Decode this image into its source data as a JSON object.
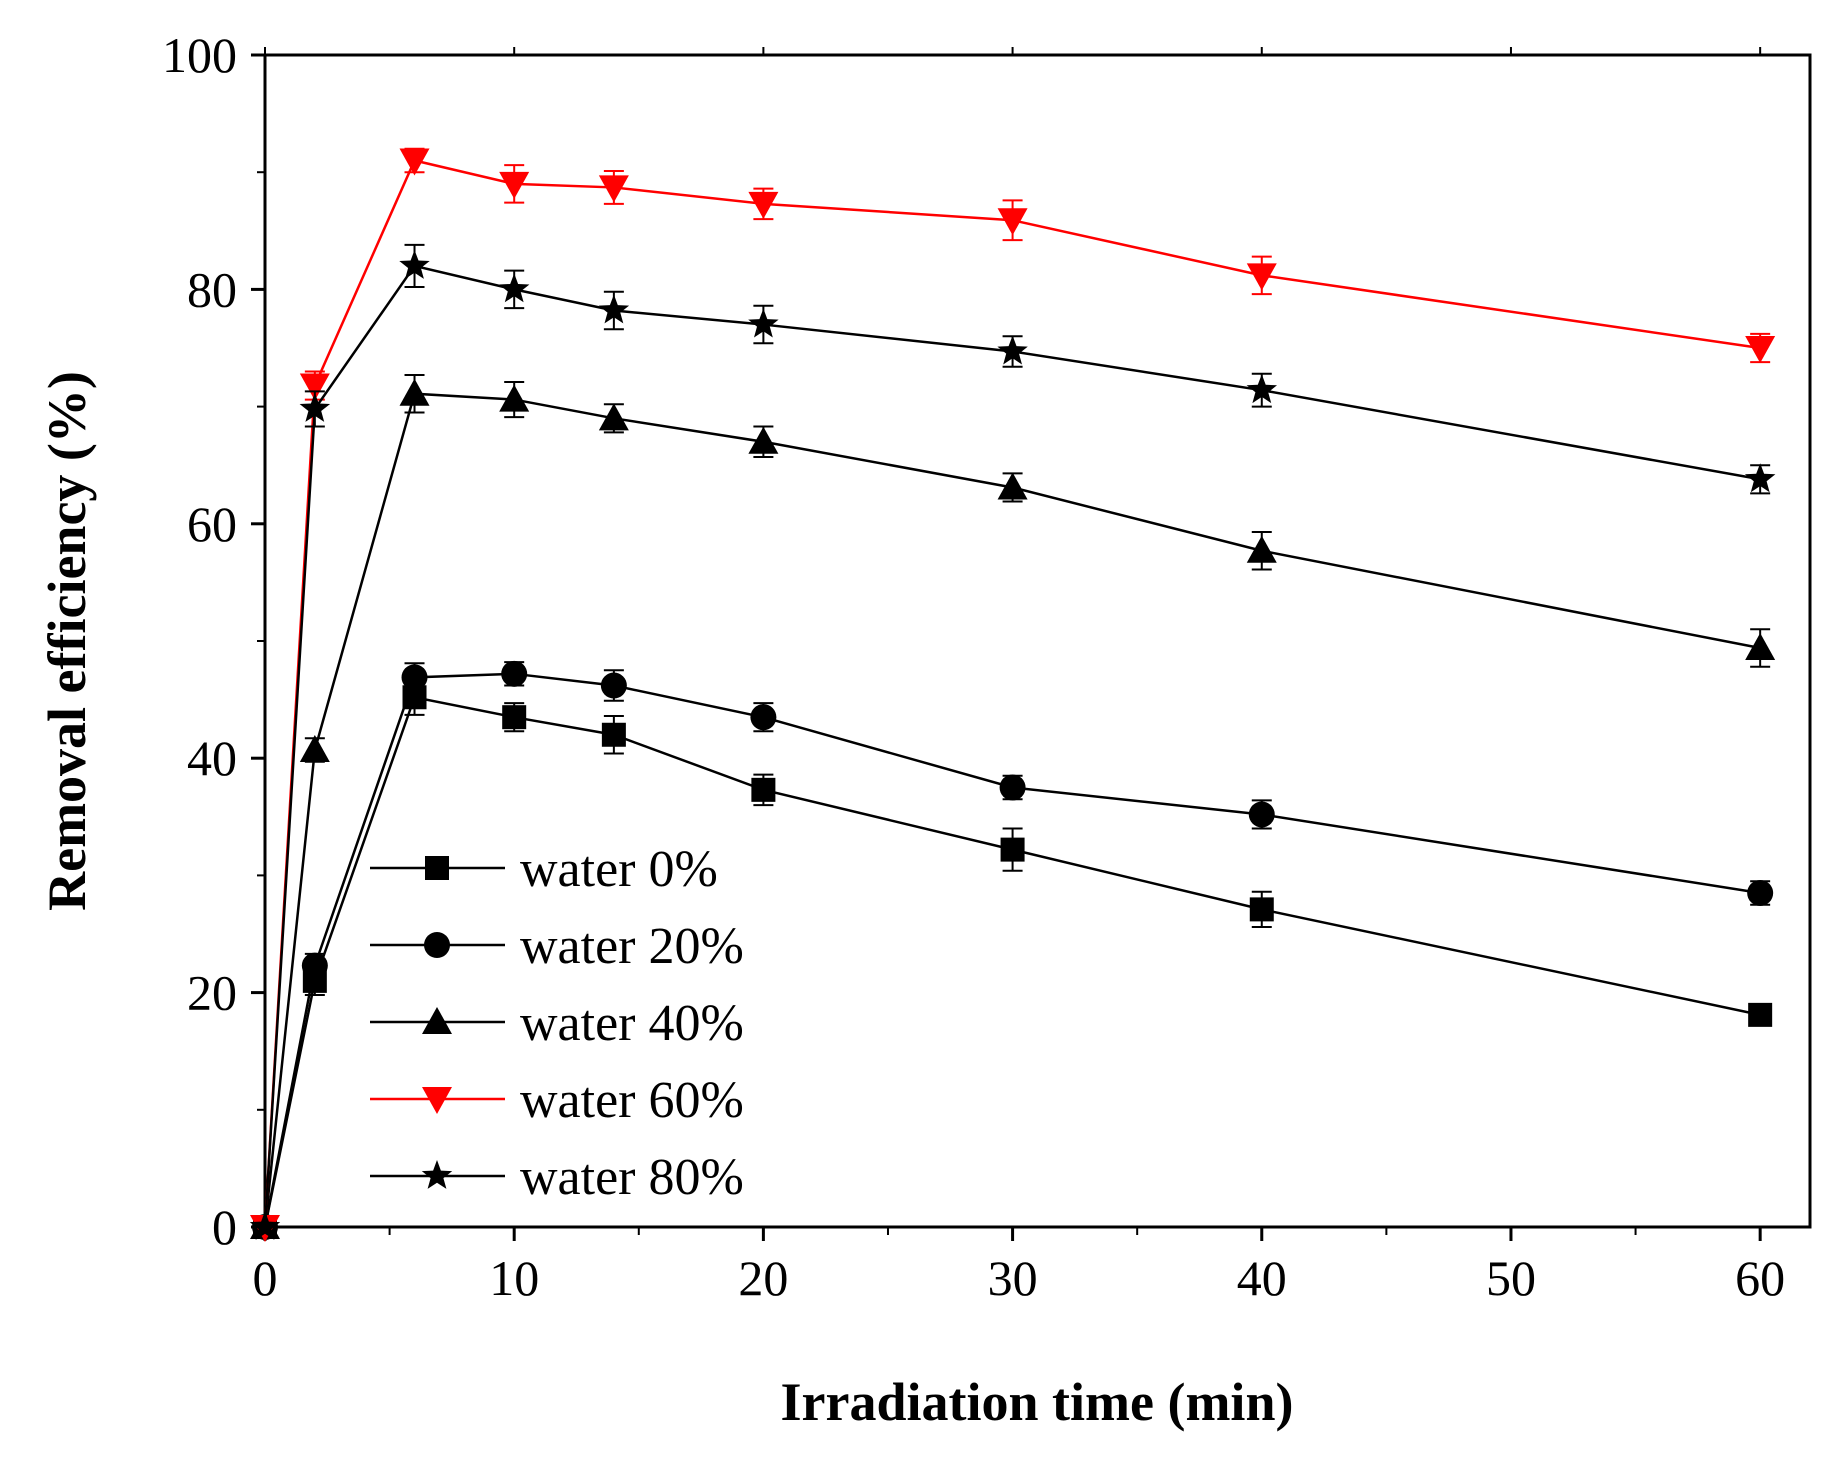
{
  "chart_data": {
    "type": "line",
    "title": "",
    "xlabel": "Irradiation time (min)",
    "ylabel": "Removal efficiency (%)",
    "xlim": [
      0,
      62
    ],
    "ylim": [
      0,
      100
    ],
    "xticks": [
      0,
      10,
      20,
      30,
      40,
      50,
      60
    ],
    "yticks": [
      0,
      20,
      40,
      60,
      80,
      100
    ],
    "grid": false,
    "legend_position": "lower-left",
    "x": [
      0,
      2,
      6,
      10,
      14,
      20,
      30,
      40,
      60
    ],
    "series": [
      {
        "name": "water 0%",
        "marker": "square",
        "color": "#000000",
        "values": [
          0,
          21,
          45.2,
          43.5,
          42,
          37.3,
          32.2,
          27.1,
          18.1
        ],
        "errors": [
          0,
          1.2,
          1.5,
          1.2,
          1.6,
          1.3,
          1.8,
          1.5,
          0.8
        ]
      },
      {
        "name": "water 20%",
        "marker": "circle",
        "color": "#000000",
        "values": [
          0,
          22.3,
          46.9,
          47.2,
          46.2,
          43.5,
          37.5,
          35.2,
          28.5
        ],
        "errors": [
          0,
          1.0,
          1.2,
          1.0,
          1.3,
          1.2,
          1.0,
          1.2,
          1.0
        ]
      },
      {
        "name": "water 40%",
        "marker": "triangle-up",
        "color": "#000000",
        "values": [
          0,
          40.7,
          71.1,
          70.6,
          69,
          67,
          63.1,
          57.7,
          49.4
        ],
        "errors": [
          0,
          1.0,
          1.6,
          1.5,
          1.2,
          1.3,
          1.2,
          1.6,
          1.6
        ]
      },
      {
        "name": "water 60%",
        "marker": "triangle-down",
        "color": "#ff0000",
        "values": [
          0,
          71.8,
          91,
          89,
          88.7,
          87.3,
          85.9,
          81.2,
          75
        ],
        "errors": [
          0,
          1.2,
          1.0,
          1.6,
          1.4,
          1.3,
          1.7,
          1.6,
          1.2
        ]
      },
      {
        "name": "water 80%",
        "marker": "star",
        "color": "#000000",
        "values": [
          0,
          69.8,
          82,
          80,
          78.2,
          77,
          74.7,
          71.4,
          63.8
        ],
        "errors": [
          0,
          1.5,
          1.8,
          1.6,
          1.6,
          1.6,
          1.3,
          1.4,
          1.2
        ]
      }
    ]
  }
}
